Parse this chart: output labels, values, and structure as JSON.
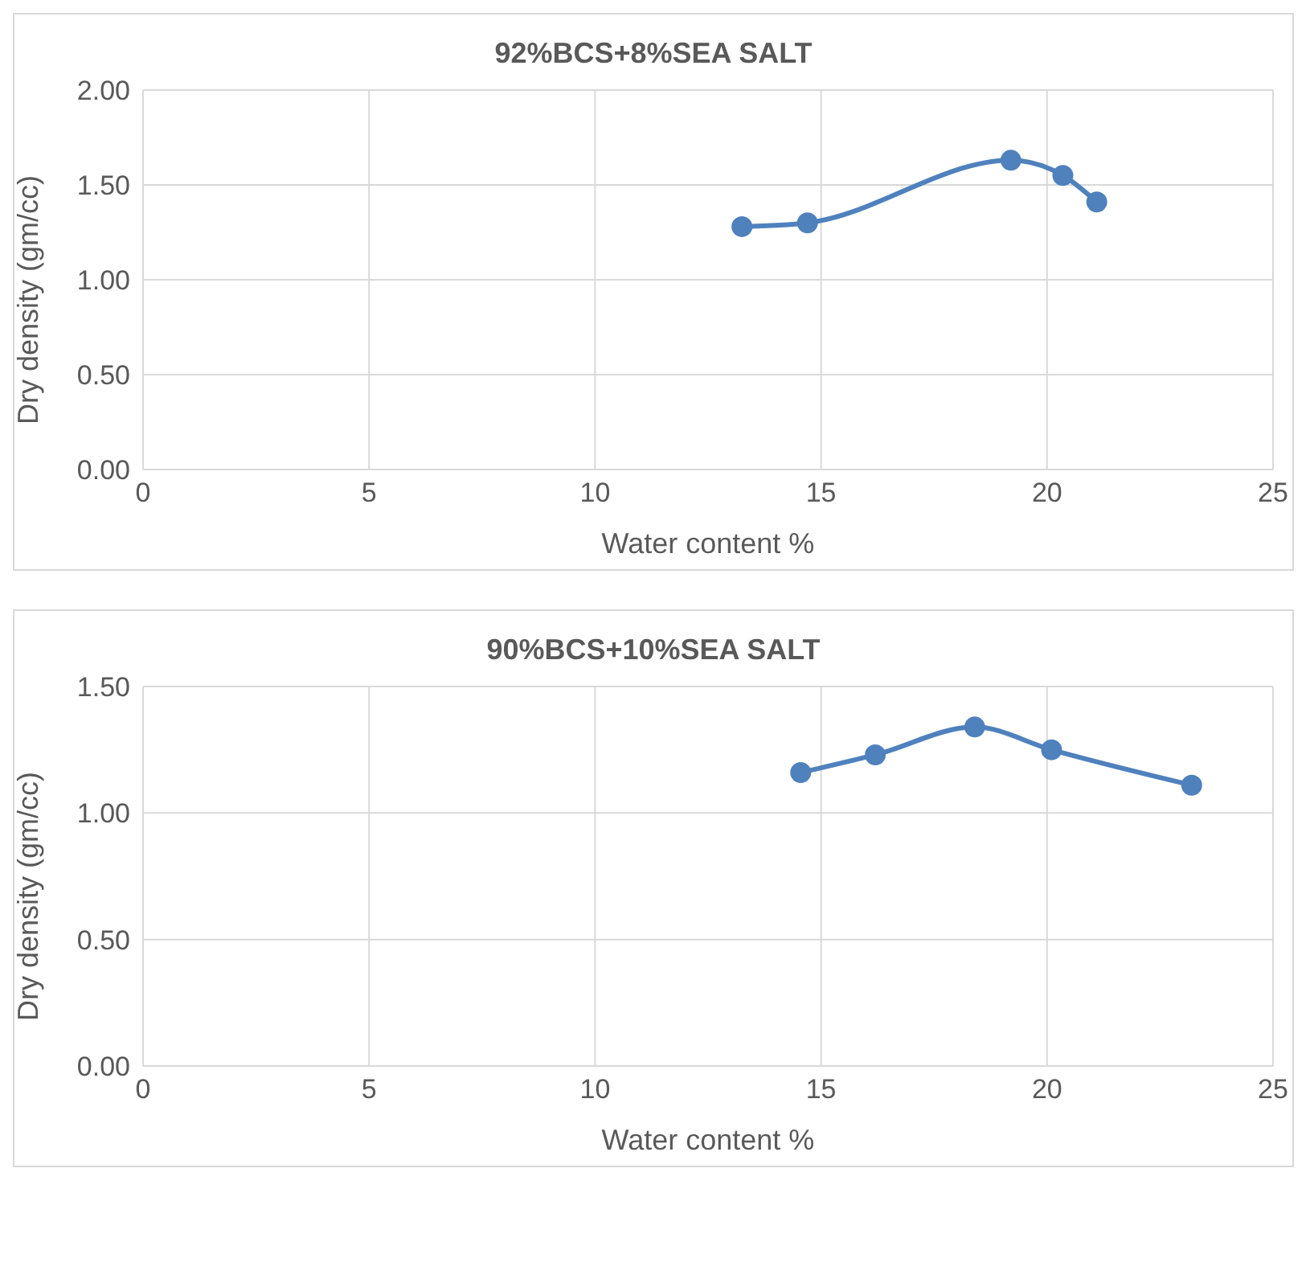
{
  "chart_data": [
    {
      "type": "line",
      "title": "92%BCS+8%SEA SALT",
      "xlabel": "Water content %",
      "ylabel": "Dry density (gm/cc)",
      "x": [
        13.25,
        14.7,
        19.2,
        20.35,
        21.1
      ],
      "series": [
        {
          "color": "#4f81bd",
          "values": [
            1.28,
            1.3,
            1.63,
            1.55,
            1.41
          ]
        }
      ],
      "xlim": [
        0,
        25
      ],
      "xticks": [
        0,
        5,
        10,
        15,
        20,
        25
      ],
      "ylim": [
        0,
        2
      ],
      "yticks": [
        {
          "value": 0,
          "label": "0.00"
        },
        {
          "value": 0.5,
          "label": "0.50"
        },
        {
          "value": 1,
          "label": "1.00"
        },
        {
          "value": 1.5,
          "label": "1.50"
        },
        {
          "value": 2,
          "label": "2.00"
        }
      ],
      "grid": true,
      "legend": false,
      "marker": "circle",
      "line_style": "solid"
    },
    {
      "type": "line",
      "title": "90%BCS+10%SEA SALT",
      "xlabel": "Water content %",
      "ylabel": "Dry density (gm/cc)",
      "x": [
        14.55,
        16.2,
        18.4,
        20.1,
        23.2
      ],
      "series": [
        {
          "color": "#4f81bd",
          "values": [
            1.16,
            1.23,
            1.34,
            1.25,
            1.11
          ]
        }
      ],
      "xlim": [
        0,
        25
      ],
      "xticks": [
        0,
        5,
        10,
        15,
        20,
        25
      ],
      "ylim": [
        0,
        1.5
      ],
      "yticks": [
        {
          "value": 0,
          "label": "0.00"
        },
        {
          "value": 0.5,
          "label": "0.50"
        },
        {
          "value": 1,
          "label": "1.00"
        },
        {
          "value": 1.5,
          "label": "1.50"
        }
      ],
      "grid": true,
      "legend": false,
      "marker": "circle",
      "line_style": "solid"
    }
  ]
}
